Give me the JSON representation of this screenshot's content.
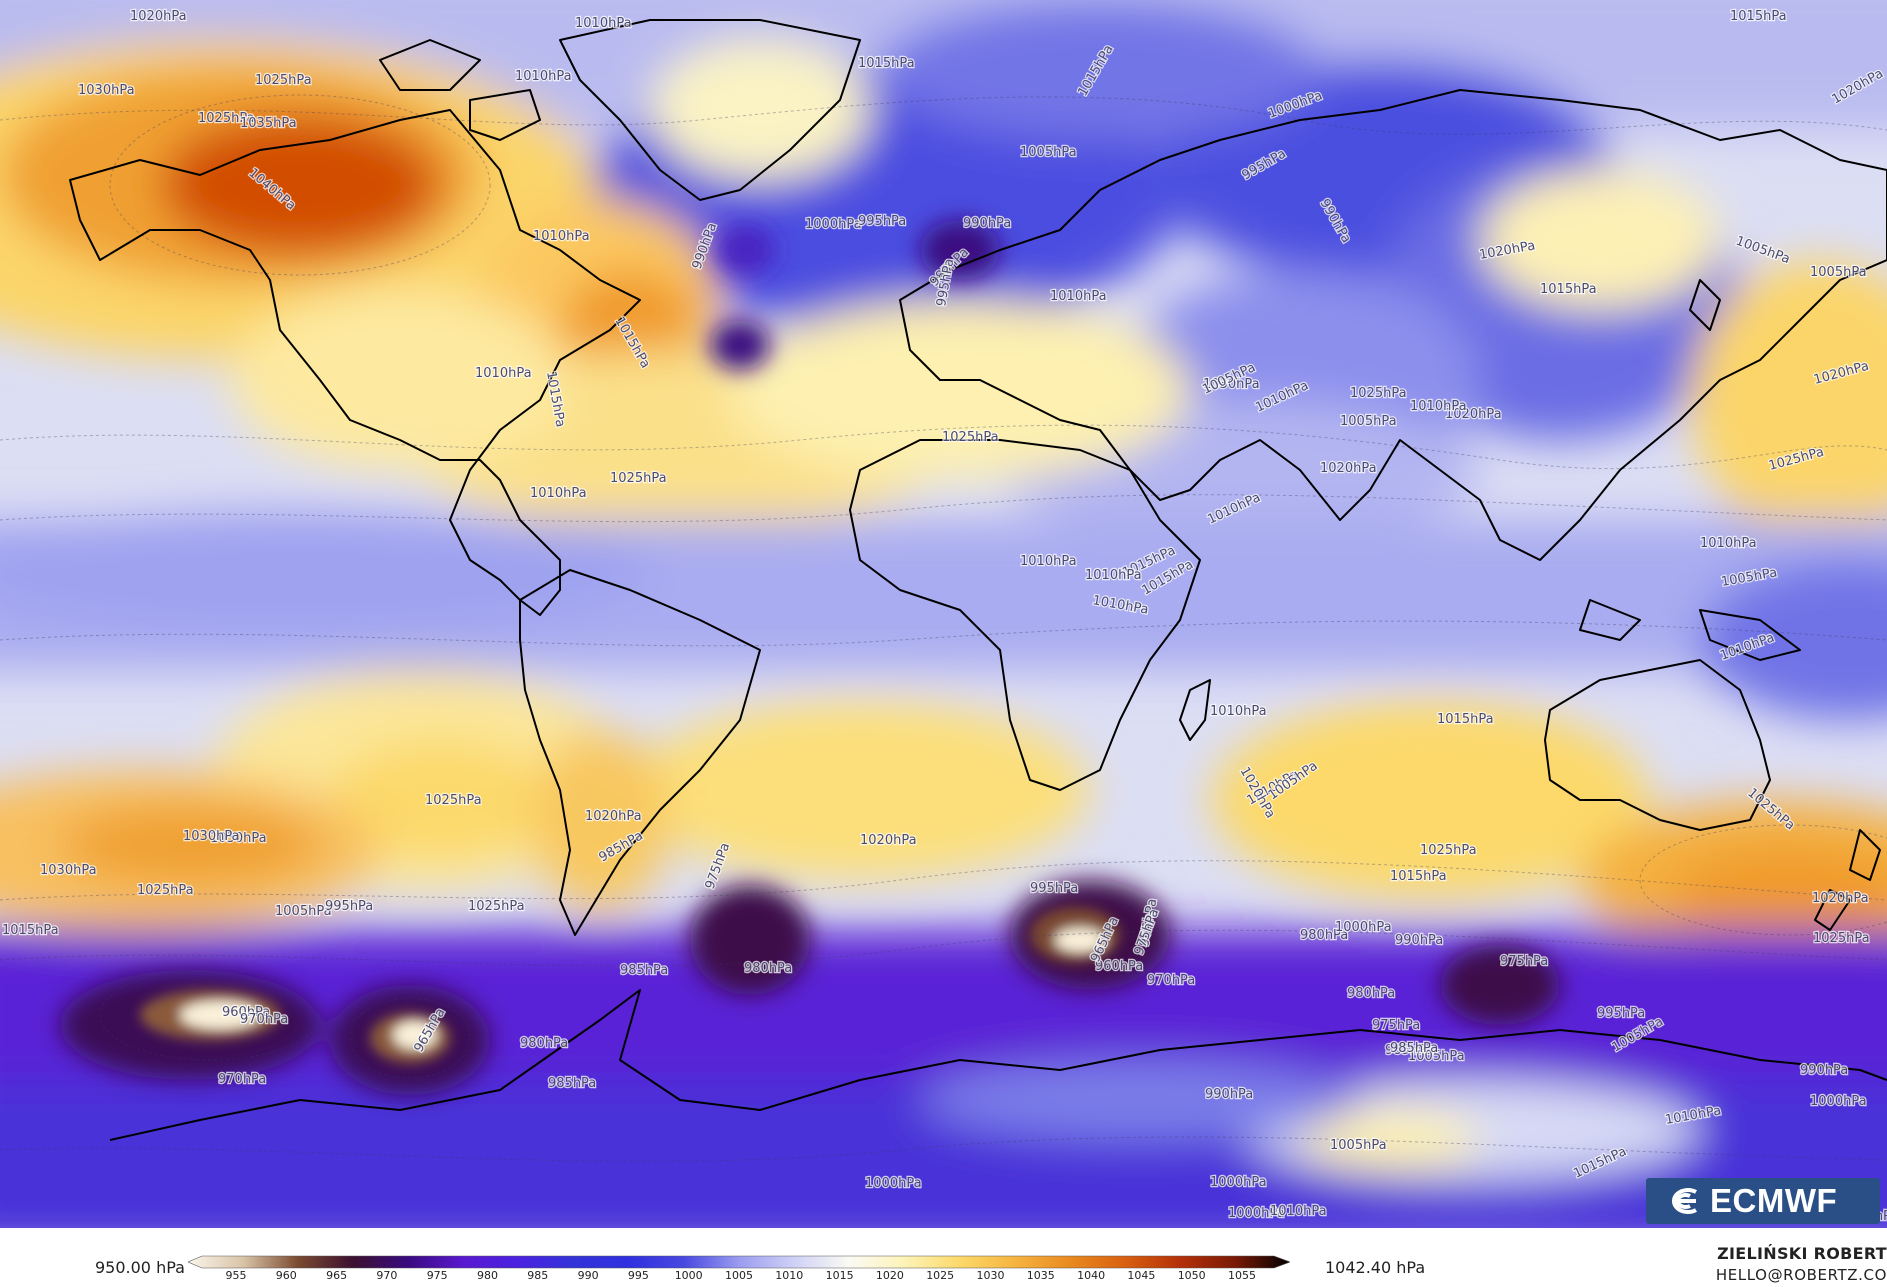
{
  "colors": {
    "very_high": "#d24e00",
    "high": "#f0a030",
    "mid_high": "#fcd96a",
    "light_yellow": "#fdf3b8",
    "neutral": "#fbfaf4",
    "light_blue": "#d8daf5",
    "lavender": "#a7aaf0",
    "blue": "#5457e0",
    "deep_blue": "#3333d8",
    "violet": "#5a18d0",
    "deep_violet": "#4a0fa8",
    "dark_purple": "#3a0a55",
    "brown": "#6a3a20",
    "pale_core": "#fbf2dc",
    "coast": "#000000"
  },
  "colorbar": {
    "min_label": "950.00 hPa",
    "max_label": "1042.40 hPa",
    "ticks": [
      "955",
      "960",
      "965",
      "970",
      "975",
      "980",
      "985",
      "990",
      "995",
      "1000",
      "1005",
      "1010",
      "1015",
      "1020",
      "1025",
      "1030",
      "1035",
      "1040",
      "1045",
      "1050",
      "1055"
    ],
    "stops": [
      "#fbf5ec",
      "#d9c4a8",
      "#7a4a30",
      "#3c1030",
      "#3a0a80",
      "#5a18d0",
      "#4a22e0",
      "#3333d8",
      "#3030e0",
      "#4848e0",
      "#9a9cf0",
      "#cfd1f6",
      "#fbfaf4",
      "#fdf3b8",
      "#fcd96a",
      "#f6b440",
      "#e98a20",
      "#d86010",
      "#b43008",
      "#7a1a06",
      "#000000"
    ]
  },
  "author": {
    "name": "ZIELIŃSKI ROBERT",
    "email": "HELLO@ROBERTZ.CO"
  },
  "logo": {
    "text": "ECMWF"
  },
  "isobar_labels": [
    {
      "t": "1020hPa"
    },
    {
      "t": "1010hPa"
    },
    {
      "t": "1010hPa"
    },
    {
      "t": "1015hPa"
    },
    {
      "t": "1015hPa"
    },
    {
      "t": "1015hPa"
    },
    {
      "t": "1020hPa"
    },
    {
      "t": "1025hPa"
    },
    {
      "t": "1030hPa"
    },
    {
      "t": "1025hPa"
    },
    {
      "t": "1035hPa"
    },
    {
      "t": "1040hPa"
    },
    {
      "t": "1010hPa"
    },
    {
      "t": "1000hPa"
    },
    {
      "t": "1005hPa"
    },
    {
      "t": "995hPa"
    },
    {
      "t": "990hPa"
    },
    {
      "t": "1000hPa"
    },
    {
      "t": "995hPa"
    },
    {
      "t": "990hPa"
    },
    {
      "t": "990hPa"
    },
    {
      "t": "985hPa"
    },
    {
      "t": "995hPa"
    },
    {
      "t": "1010hPa"
    },
    {
      "t": "1020hPa"
    },
    {
      "t": "1015hPa"
    },
    {
      "t": "1005hPa"
    },
    {
      "t": "1005hPa"
    },
    {
      "t": "1020hPa"
    },
    {
      "t": "1025hPa"
    },
    {
      "t": "1020hPa"
    },
    {
      "t": "1025hPa"
    },
    {
      "t": "1015hPa"
    },
    {
      "t": "1010hPa"
    },
    {
      "t": "1015hPa"
    },
    {
      "t": "1030hPa"
    },
    {
      "t": "1010hPa"
    },
    {
      "t": "1025hPa"
    },
    {
      "t": "1020hPa"
    },
    {
      "t": "1025hPa"
    },
    {
      "t": "1005hPa"
    },
    {
      "t": "1005hPa"
    },
    {
      "t": "1010hPa"
    },
    {
      "t": "1010hPa"
    },
    {
      "t": "1010hPa"
    },
    {
      "t": "1010hPa"
    },
    {
      "t": "1015hPa"
    },
    {
      "t": "1015hPa"
    },
    {
      "t": "1010hPa"
    },
    {
      "t": "1010hPa"
    },
    {
      "t": "1005hPa"
    },
    {
      "t": "1010hPa"
    },
    {
      "t": "1015hPa"
    },
    {
      "t": "1010hPa"
    },
    {
      "t": "1025hPa"
    },
    {
      "t": "1020hPa"
    },
    {
      "t": "1025hPa"
    },
    {
      "t": "1030hPa"
    },
    {
      "t": "1030hPa"
    },
    {
      "t": "1025hPa"
    },
    {
      "t": "1010hPa"
    },
    {
      "t": "1005hPa"
    },
    {
      "t": "1015hPa"
    },
    {
      "t": "1020hPa"
    },
    {
      "t": "1010hPa"
    },
    {
      "t": "1020hPa"
    },
    {
      "t": "1025hPa"
    },
    {
      "t": "1020hPa"
    },
    {
      "t": "1030hPa"
    },
    {
      "t": "1025hPa"
    },
    {
      "t": "1015hPa"
    },
    {
      "t": "1025hPa"
    },
    {
      "t": "1005hPa"
    },
    {
      "t": "995hPa"
    },
    {
      "t": "985hPa"
    },
    {
      "t": "975hPa"
    },
    {
      "t": "980hPa"
    },
    {
      "t": "985hPa"
    },
    {
      "t": "995hPa"
    },
    {
      "t": "965hPa"
    },
    {
      "t": "970hPa"
    },
    {
      "t": "975hPa"
    },
    {
      "t": "980hPa"
    },
    {
      "t": "1000hPa"
    },
    {
      "t": "990hPa"
    },
    {
      "t": "980hPa"
    },
    {
      "t": "975hPa"
    },
    {
      "t": "995hPa"
    },
    {
      "t": "975hPa"
    },
    {
      "t": "960hPa"
    },
    {
      "t": "965hPa"
    },
    {
      "t": "970hPa"
    },
    {
      "t": "960hPa"
    },
    {
      "t": "965hPa"
    },
    {
      "t": "970hPa"
    },
    {
      "t": "980hPa"
    },
    {
      "t": "985hPa"
    },
    {
      "t": "985hPa"
    },
    {
      "t": "990hPa"
    },
    {
      "t": "1005hPa"
    },
    {
      "t": "1010hPa"
    },
    {
      "t": "1015hPa"
    },
    {
      "t": "1000hPa"
    },
    {
      "t": "1000hPa"
    },
    {
      "t": "1005hPa"
    },
    {
      "t": "1005hPa"
    },
    {
      "t": "1000hPa"
    },
    {
      "t": "985hPa"
    },
    {
      "t": "990hPa"
    },
    {
      "t": "990hPa"
    },
    {
      "t": "1010hPa"
    },
    {
      "t": "1000hPa"
    }
  ]
}
